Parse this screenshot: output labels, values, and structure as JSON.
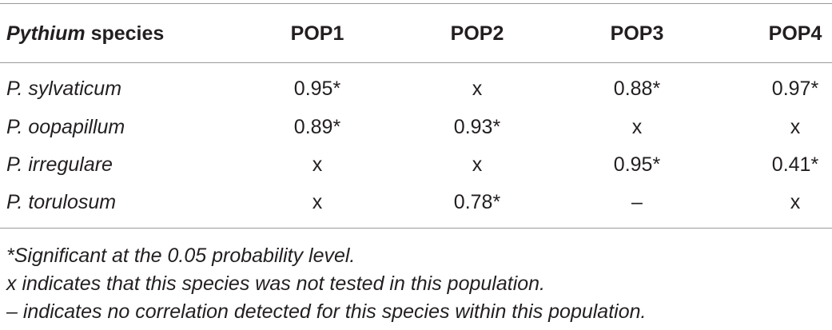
{
  "table": {
    "header": [
      {
        "italic": "Pythium",
        "plain": "species"
      },
      "POP1",
      "POP2",
      "POP3",
      "POP4"
    ],
    "rows": [
      [
        "P. sylvaticum",
        "0.95*",
        "x",
        "0.88*",
        "0.97*"
      ],
      [
        "P. oopapillum",
        "0.89*",
        "0.93*",
        "x",
        "x"
      ],
      [
        "P. irregulare",
        "x",
        "x",
        "0.95*",
        "0.41*"
      ],
      [
        "P. torulosum",
        "x",
        "0.78*",
        "–",
        "x"
      ]
    ]
  },
  "footnotes": [
    "*Significant at the 0.05 probability level.",
    "x indicates that this species was not tested in this population.",
    "– indicates no correlation detected for this species within this population."
  ]
}
